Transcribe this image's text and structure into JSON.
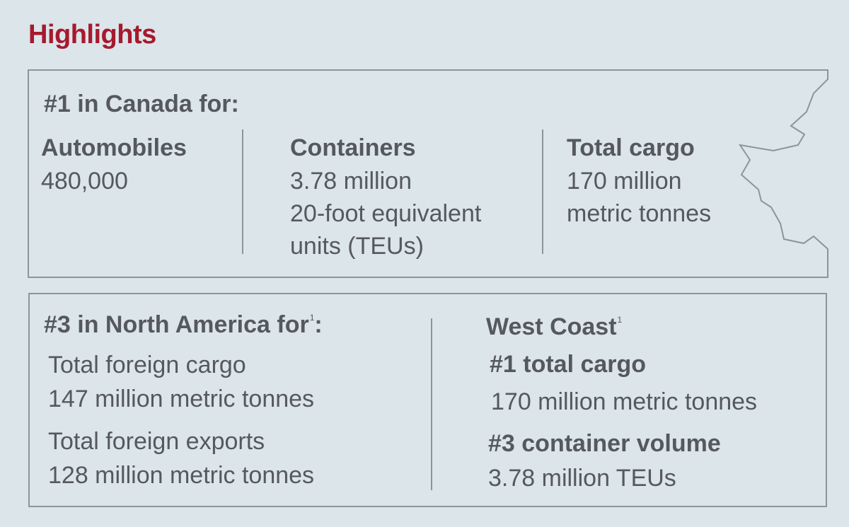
{
  "title": "Highlights",
  "canada": {
    "heading": "#1 in Canada for:",
    "columns": [
      {
        "title": "Automobiles",
        "lines": [
          "480,000"
        ]
      },
      {
        "title": "Containers",
        "lines": [
          "3.78 million",
          "20-foot equivalent",
          "units (TEUs)"
        ]
      },
      {
        "title": "Total cargo",
        "lines": [
          "170 million",
          "metric tonnes"
        ]
      }
    ]
  },
  "north_america": {
    "heading": "#3 in North America for",
    "heading_sup": "1",
    "heading_suffix": ":",
    "items": [
      {
        "label": "Total foreign cargo",
        "value": "147 million metric tonnes"
      },
      {
        "label": "Total foreign exports",
        "value": "128 million metric tonnes"
      }
    ]
  },
  "west_coast": {
    "heading": "West Coast",
    "heading_sup": "1",
    "items": [
      {
        "label": "#1 total cargo",
        "value": "170 million metric tonnes"
      },
      {
        "label": "#3 container volume",
        "value": "3.78 million TEUs"
      }
    ]
  },
  "colors": {
    "title": "#a6192e",
    "text": "#55595d",
    "border": "#8d959a",
    "background": "#dbe5ea"
  },
  "icons": [
    "maple-leaf-outline-icon"
  ]
}
